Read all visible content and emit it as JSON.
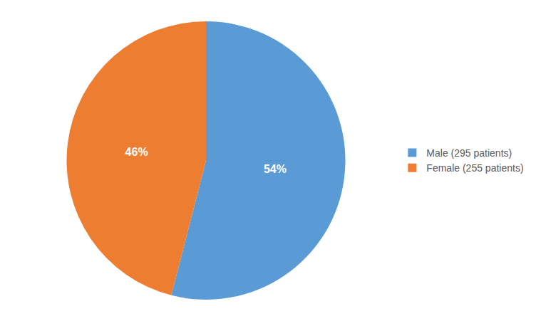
{
  "chart_data": {
    "type": "pie",
    "categories": [
      "Male (295 patients)",
      "Female (255 patients)"
    ],
    "values": [
      54,
      46
    ],
    "value_labels": [
      "54%",
      "46%"
    ],
    "colors": [
      "#5B9BD5",
      "#ED7D31"
    ],
    "data_labels": true,
    "legend": "right"
  }
}
